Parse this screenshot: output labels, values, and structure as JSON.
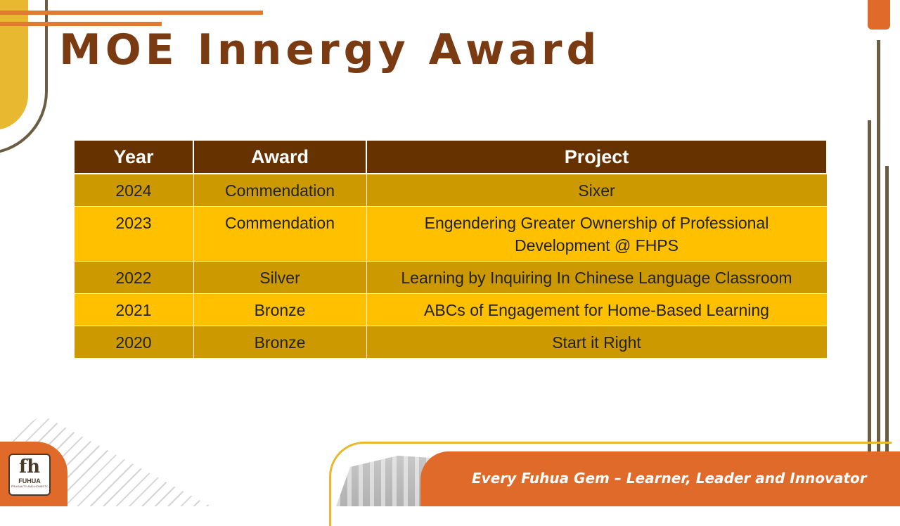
{
  "title": "MOE Innergy Award",
  "table": {
    "headers": [
      "Year",
      "Award",
      "Project"
    ],
    "rows": [
      {
        "year": "2024",
        "award": "Commendation",
        "project": "Sixer"
      },
      {
        "year": "2023",
        "award": "Commendation",
        "project": "Engendering Greater Ownership of Professional Development @ FHPS"
      },
      {
        "year": "2022",
        "award": "Silver",
        "project": "Learning by Inquiring In Chinese Language Classroom"
      },
      {
        "year": "2021",
        "award": "Bronze",
        "project": "ABCs of Engagement for Home-Based Learning"
      },
      {
        "year": "2020",
        "award": "Bronze",
        "project": "Start it Right"
      }
    ]
  },
  "footer": {
    "slogan": "Every Fuhua Gem – Learner, Leader and Innovator"
  },
  "logo": {
    "mark": "fh",
    "name": "FUHUA",
    "motto": "FRUGALITY AND HONESTY"
  },
  "colors": {
    "title": "#7a3a12",
    "header_bg": "#663300",
    "row_dark": "#cc9900",
    "row_light": "#ffc000",
    "accent_orange": "#e06a2a",
    "accent_yellow": "#e8b830"
  }
}
